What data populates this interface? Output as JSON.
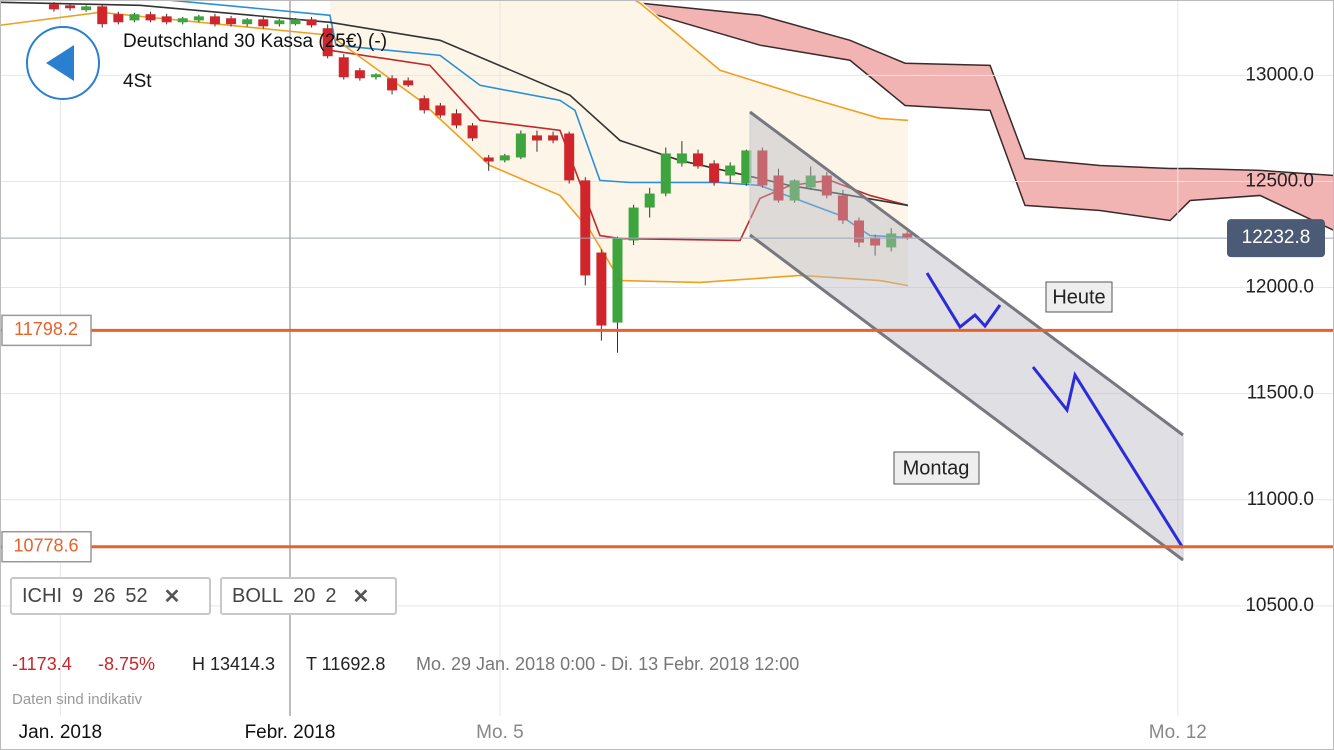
{
  "header": {
    "title": "Deutschland 30 Kassa (25€) (-)",
    "interval": "4St"
  },
  "indicators": [
    {
      "name": "ICHI",
      "params": [
        9,
        26,
        52
      ]
    },
    {
      "name": "BOLL",
      "params": [
        20,
        2
      ]
    }
  ],
  "stats": {
    "change": "-1173.4",
    "change_pct": "-8.75%",
    "high": "H 13414.3",
    "low": "T 11692.8",
    "range": "Mo. 29 Jan. 2018 0:00 - Di. 13 Febr. 2018 12:00",
    "note": "Daten sind indikativ"
  },
  "annotations": [
    "Heute",
    "Montag"
  ],
  "chart_data": {
    "type": "candlestick",
    "categories": [
      null,
      null,
      null,
      null,
      null,
      null,
      null,
      null,
      null,
      null,
      null,
      null,
      null,
      null,
      null,
      null,
      null,
      null,
      null,
      null,
      null,
      null,
      null,
      null,
      null,
      null,
      null,
      null,
      null,
      null,
      null,
      null,
      null,
      null,
      null,
      null,
      null,
      null,
      null,
      null,
      null,
      null,
      null,
      null,
      null,
      null,
      null,
      null,
      null,
      null,
      null,
      null,
      null,
      null
    ],
    "open": [
      13335,
      13330,
      13307,
      13325,
      13288,
      13259,
      13288,
      13278,
      13250,
      13259,
      13278,
      13269,
      13241,
      13264,
      13241,
      13241,
      13264,
      13222,
      13085,
      13024,
      12991,
      12986,
      12976,
      12892,
      12858,
      12821,
      12764,
      12613,
      12599,
      12613,
      12717,
      12717,
      12726,
      12505,
      12165,
      11835,
      12222,
      12377,
      12443,
      12585,
      12632,
      12585,
      12528,
      12491,
      12646,
      12528,
      12410,
      12472,
      12528,
      12434,
      12316,
      12236,
      12189,
      12255
    ],
    "high": [
      13345,
      13340,
      13330,
      13335,
      13300,
      13295,
      13300,
      13290,
      13275,
      13285,
      13290,
      13280,
      13270,
      13275,
      13265,
      13270,
      13275,
      13240,
      13100,
      13035,
      13010,
      13000,
      12990,
      12905,
      12870,
      12840,
      12775,
      12625,
      12630,
      12740,
      12740,
      12735,
      12735,
      12520,
      12180,
      12240,
      12390,
      12470,
      12660,
      12690,
      12650,
      12600,
      12590,
      12650,
      12660,
      12560,
      12510,
      12570,
      12545,
      12460,
      12330,
      12250,
      12280,
      12265
    ],
    "low": [
      13300,
      13305,
      13300,
      13225,
      13240,
      13250,
      13250,
      13240,
      13240,
      13250,
      13230,
      13230,
      13230,
      13220,
      13230,
      13235,
      13225,
      13080,
      12980,
      12975,
      12980,
      12910,
      12945,
      12820,
      12800,
      12750,
      12690,
      12550,
      12590,
      12605,
      12640,
      12680,
      12490,
      12010,
      11750,
      11693,
      12200,
      12330,
      12430,
      12570,
      12560,
      12480,
      12490,
      12480,
      12470,
      12400,
      12400,
      12460,
      12420,
      12300,
      12190,
      12150,
      12170,
      12225
    ],
    "close": [
      13311,
      13316,
      13325,
      13241,
      13250,
      13288,
      13259,
      13250,
      13269,
      13278,
      13241,
      13241,
      13264,
      13231,
      13259,
      13264,
      13236,
      13090,
      12991,
      12986,
      13005,
      12929,
      12953,
      12835,
      12811,
      12764,
      12703,
      12594,
      12623,
      12726,
      12693,
      12693,
      12505,
      12057,
      11821,
      12236,
      12377,
      12443,
      12632,
      12632,
      12571,
      12495,
      12575,
      12646,
      12481,
      12410,
      12505,
      12528,
      12434,
      12316,
      12212,
      12198,
      12255,
      12236
    ],
    "up_color": "#3ea53e",
    "down_color": "#d0262b",
    "xlim": [
      -3.35,
      79.5
    ],
    "ylim": [
      9981,
      13355
    ],
    "xticks": [
      {
        "value": 0.4,
        "label": "Jan. 2018"
      },
      {
        "value": 14.66,
        "label": "Febr. 2018"
      },
      {
        "value": 27.7,
        "label": "Mo. 5"
      },
      {
        "value": 69.8,
        "label": "Mo. 12"
      }
    ],
    "yticks": [
      {
        "value": 10500,
        "label": "10500.0"
      },
      {
        "value": 11000,
        "label": "11000.0"
      },
      {
        "value": 11500,
        "label": "11500.0"
      },
      {
        "value": 12000,
        "label": "12000.0"
      },
      {
        "value": 12500,
        "label": "12500.0"
      },
      {
        "value": 13000,
        "label": "13000.0"
      }
    ],
    "grid": true,
    "cloud": {
      "color": "#f2b3b3",
      "x": [
        29.57,
        36.4,
        43.85,
        49.44,
        52.86,
        58.14,
        60.31,
        64.97,
        69.32,
        70.56,
        74.91,
        79.5
      ],
      "upper": [
        13360,
        13340,
        13283,
        13165,
        13057,
        13047,
        12608,
        12575,
        12561,
        12561,
        12552,
        12528
      ],
      "lower": [
        13360,
        13307,
        13142,
        13071,
        12858,
        12835,
        12387,
        12363,
        12316,
        12410,
        12434,
        12269
      ]
    },
    "lines": [
      {
        "color": "#2a8fd8",
        "x": [
          7.2,
          17.14,
          17.52,
          23.98,
          26.46,
          31.43,
          32.36,
          33.91,
          35.78,
          41.37,
          43.85,
          48.82,
          50.68,
          53.04
        ],
        "values": [
          13354,
          13283,
          13142,
          13094,
          12953,
          12882,
          12835,
          12505,
          12495,
          12495,
          12481,
          12340,
          12245,
          12236
        ]
      },
      {
        "color": "#c0282d",
        "x": [
          17.14,
          23.35,
          26.46,
          31.43,
          33.91,
          35.16,
          42.61,
          43.85,
          45.71,
          48.2,
          50.68,
          53.04
        ],
        "values": [
          13118,
          13047,
          12788,
          12741,
          12245,
          12231,
          12222,
          12420,
          12481,
          12505,
          12434,
          12387
        ]
      },
      {
        "color": "#333333",
        "x": [
          -3.35,
          5.34,
          17.14,
          23.98,
          32.05,
          35.16,
          38.88,
          45.71,
          49.44,
          53.04
        ],
        "values": [
          13344,
          13330,
          13250,
          13165,
          12906,
          12693,
          12599,
          12481,
          12434,
          12387
        ]
      },
      {
        "color": "#f0a020",
        "x": [
          33.91,
          36.4,
          41.37,
          46.34,
          51.3,
          53.04
        ],
        "values": [
          13448,
          13340,
          13024,
          12906,
          12797,
          12788
        ]
      },
      {
        "color": "#f0a020",
        "x": [
          -3.35,
          2.86,
          17.14,
          22.73,
          27.08,
          31.43,
          33.29,
          35.16,
          40.12,
          46.34,
          51.3,
          53.04
        ],
        "values": [
          13236,
          13297,
          13189,
          12882,
          12575,
          12434,
          12269,
          12033,
          12024,
          12057,
          12033,
          12009
        ]
      }
    ],
    "levels": [
      {
        "value": 11798.2,
        "color": "#e8622a"
      },
      {
        "value": 10778.6,
        "color": "#e8622a"
      }
    ],
    "last_price": 12232.8
  }
}
